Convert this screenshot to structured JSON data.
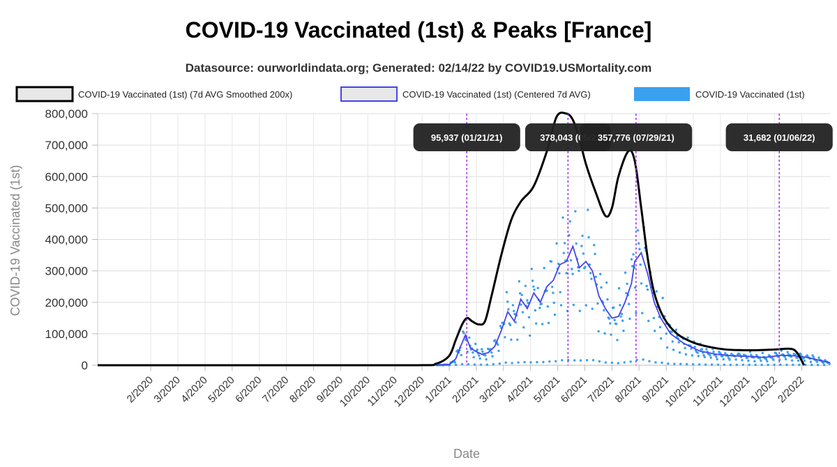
{
  "chart_data": {
    "type": "line",
    "title": "COVID-19 Vaccinated (1st) & Peaks [France]",
    "subtitle": "Datasource: ourworldindata.org; Generated: 02/14/22 by COVID19.USMortality.com",
    "xlabel": "Date",
    "ylabel": "COVID-19 Vaccinated (1st)",
    "ylim": [
      0,
      800000
    ],
    "yticks": [
      0,
      100000,
      200000,
      300000,
      400000,
      500000,
      600000,
      700000,
      800000
    ],
    "ytick_labels": [
      "0",
      "100,000",
      "200,000",
      "300,000",
      "400,000",
      "500,000",
      "600,000",
      "700,000",
      "800,000"
    ],
    "xlim": [
      2019.92,
      2022.17
    ],
    "xticks": [
      2020.0833,
      2020.1667,
      2020.25,
      2020.3333,
      2020.4167,
      2020.5,
      2020.5833,
      2020.6667,
      2020.75,
      2020.8333,
      2020.9167,
      2021.0,
      2021.0833,
      2021.1667,
      2021.25,
      2021.3333,
      2021.4167,
      2021.5,
      2021.5833,
      2021.6667,
      2021.75,
      2021.8333,
      2021.9167,
      2022.0,
      2022.0833
    ],
    "xtick_labels": [
      "2/2020",
      "3/2020",
      "4/2020",
      "5/2020",
      "6/2020",
      "7/2020",
      "8/2020",
      "9/2020",
      "10/2020",
      "11/2020",
      "12/2020",
      "1/2021",
      "2/2021",
      "3/2021",
      "4/2021",
      "5/2021",
      "6/2021",
      "7/2021",
      "8/2021",
      "9/2021",
      "10/2021",
      "11/2021",
      "12/2021",
      "1/2022",
      "2/2022"
    ],
    "grid": true,
    "legend_position": "top",
    "series": [
      {
        "name": "COVID-19 Vaccinated (1st) (7d AVG Smoothed 200x)",
        "kind": "line",
        "color": "#000000",
        "x": [
          2019.92,
          2020.5,
          2020.9,
          2020.96,
          2021.0,
          2021.02,
          2021.04,
          2021.055,
          2021.07,
          2021.09,
          2021.11,
          2021.13,
          2021.16,
          2021.19,
          2021.22,
          2021.26,
          2021.3,
          2021.33,
          2021.36,
          2021.38,
          2021.4,
          2021.42,
          2021.45,
          2021.48,
          2021.5,
          2021.52,
          2021.55,
          2021.57,
          2021.59,
          2021.61,
          2021.63,
          2021.66,
          2021.7,
          2021.75,
          2021.8,
          2021.85,
          2021.9,
          2021.95,
          2022.0,
          2022.05,
          2022.07,
          2022.09
        ],
        "y": [
          0,
          0,
          0,
          5000,
          30000,
          80000,
          130000,
          150000,
          140000,
          130000,
          140000,
          220000,
          350000,
          460000,
          520000,
          570000,
          680000,
          790000,
          800000,
          780000,
          720000,
          640000,
          550000,
          475000,
          500000,
          600000,
          680000,
          650000,
          500000,
          340000,
          230000,
          150000,
          100000,
          72000,
          58000,
          50000,
          48000,
          48000,
          50000,
          52000,
          38000,
          0
        ]
      },
      {
        "name": "COVID-19 Vaccinated (1st) (Centered 7d AVG)",
        "kind": "line",
        "color": "#4444ee",
        "x": [
          2019.92,
          2020.95,
          2021.0,
          2021.02,
          2021.035,
          2021.05,
          2021.065,
          2021.08,
          2021.1,
          2021.12,
          2021.14,
          2021.16,
          2021.18,
          2021.2,
          2021.22,
          2021.24,
          2021.26,
          2021.28,
          2021.3,
          2021.32,
          2021.34,
          2021.36,
          2021.38,
          2021.4,
          2021.42,
          2021.44,
          2021.46,
          2021.48,
          2021.5,
          2021.52,
          2021.54,
          2021.56,
          2021.57,
          2021.59,
          2021.61,
          2021.63,
          2021.65,
          2021.68,
          2021.72,
          2021.77,
          2021.82,
          2021.87,
          2021.92,
          2021.97,
          2022.02,
          2022.06,
          2022.1,
          2022.14,
          2022.17
        ],
        "y": [
          0,
          0,
          2000,
          20000,
          60000,
          95937,
          55000,
          45000,
          35000,
          40000,
          60000,
          110000,
          170000,
          140000,
          210000,
          180000,
          230000,
          200000,
          250000,
          270000,
          320000,
          330000,
          378043,
          310000,
          330000,
          300000,
          220000,
          180000,
          150000,
          155000,
          200000,
          260000,
          330000,
          357776,
          290000,
          200000,
          150000,
          100000,
          70000,
          45000,
          35000,
          30000,
          28000,
          25000,
          31682,
          30000,
          25000,
          15000,
          8000
        ]
      },
      {
        "name": "COVID-19 Vaccinated (1st)",
        "kind": "scatter",
        "color": "#3aa0f0"
      }
    ],
    "peaks": [
      {
        "label": "95,937 (01/21/21)",
        "x": 2021.054,
        "value": 95937
      },
      {
        "label": "378,043 (05/2",
        "x": 2021.365,
        "value": 378043
      },
      {
        "label": "357,776 (07/29/21)",
        "x": 2021.574,
        "value": 357776
      },
      {
        "label": "31,682 (01/06/22)",
        "x": 2022.014,
        "value": 31682
      }
    ]
  }
}
